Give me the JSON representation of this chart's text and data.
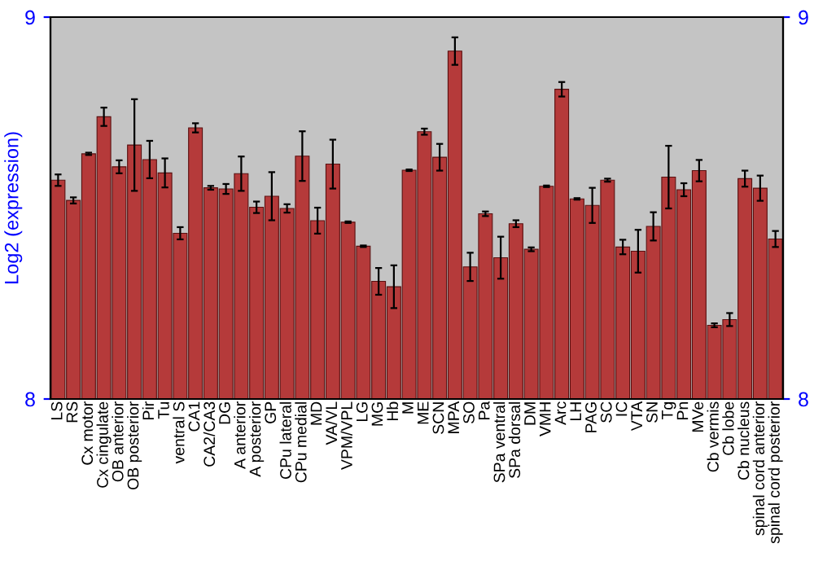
{
  "chart_data": {
    "type": "bar",
    "ylabel": "Log2 (expression)",
    "categories": [
      "LS",
      "RS",
      "Cx motor",
      "Cx cingulate",
      "OB anterior",
      "OB posterior",
      "Pir",
      "Tu",
      "ventral S",
      "CA1",
      "CA2/CA3",
      "DG",
      "A anterior",
      "A posterior",
      "GP",
      "CPu lateral",
      "CPu medial",
      "MD",
      "VA/VL",
      "VPM/VPL",
      "LG",
      "MG",
      "Hb",
      "M",
      "ME",
      "SCN",
      "MPA",
      "SO",
      "Pa",
      "SPa ventral",
      "SPa dorsal",
      "DM",
      "VMH",
      "Arc",
      "LH",
      "PAG",
      "SC",
      "IC",
      "VTA",
      "SN",
      "Tg",
      "Pn",
      "MVe",
      "Cb vermis",
      "Cb lobe",
      "Cb nucleus",
      "spinal cord anterior",
      "spinal cord posterior"
    ],
    "values": [
      8.573,
      8.52,
      8.642,
      8.739,
      8.608,
      8.665,
      8.627,
      8.592,
      8.434,
      8.71,
      8.553,
      8.55,
      8.59,
      8.502,
      8.531,
      8.499,
      8.636,
      8.467,
      8.615,
      8.463,
      8.4,
      8.308,
      8.294,
      8.599,
      8.7,
      8.633,
      8.911,
      8.346,
      8.485,
      8.37,
      8.459,
      8.392,
      8.557,
      8.811,
      8.524,
      8.507,
      8.573,
      8.398,
      8.387,
      8.452,
      8.581,
      8.548,
      8.598,
      8.193,
      8.208,
      8.577,
      8.552,
      8.419
    ],
    "errors": [
      0.015,
      0.008,
      0.003,
      0.024,
      0.017,
      0.12,
      0.049,
      0.038,
      0.016,
      0.012,
      0.005,
      0.013,
      0.045,
      0.015,
      0.063,
      0.011,
      0.065,
      0.034,
      0.064,
      0.002,
      0.002,
      0.035,
      0.056,
      0.002,
      0.008,
      0.035,
      0.036,
      0.037,
      0.006,
      0.055,
      0.009,
      0.005,
      0.002,
      0.019,
      0.002,
      0.046,
      0.004,
      0.019,
      0.056,
      0.037,
      0.082,
      0.017,
      0.028,
      0.005,
      0.017,
      0.021,
      0.033,
      0.021
    ],
    "color": "#b53a3a",
    "ylim": [
      8,
      9
    ],
    "yticks": [
      8,
      9
    ],
    "y2lim": [
      8,
      9
    ],
    "y2ticks": [
      8,
      9
    ],
    "grid": false,
    "legend": false
  }
}
